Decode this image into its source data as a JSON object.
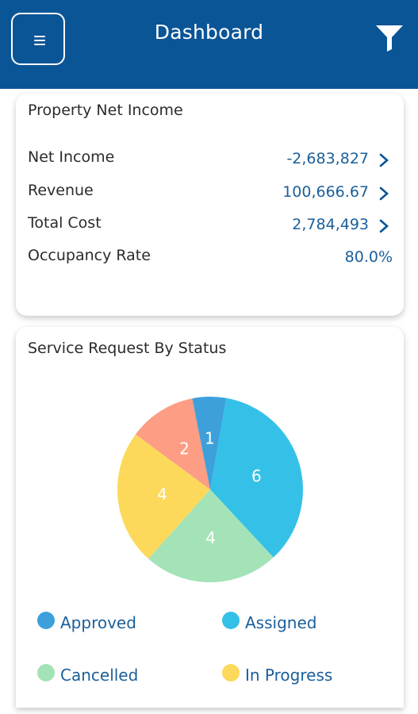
{
  "header": {
    "title": "Dashboard",
    "menu_icon": "hamburger-menu-icon",
    "filter_icon": "filter-funnel-icon",
    "background": "#0a5596"
  },
  "net_income_card": {
    "title": "Property Net Income",
    "rows": [
      {
        "label": "Net Income",
        "value": "-2,683,827",
        "has_arrow": true
      },
      {
        "label": "Revenue",
        "value": "100,666.67",
        "has_arrow": true
      },
      {
        "label": "Total Cost",
        "value": "2,784,493",
        "has_arrow": true
      },
      {
        "label": "Occupancy Rate",
        "value": "80.0%",
        "has_arrow": false
      }
    ],
    "value_color": "#1b5f9a"
  },
  "service_card": {
    "title": "Service Request By Status"
  },
  "chart_data": {
    "type": "pie",
    "title": "Service Request By Status",
    "categories": [
      "Assigned",
      "Cancelled",
      "In Progress",
      "Unlabeled",
      "Approved"
    ],
    "values": [
      6,
      4,
      4,
      2,
      1
    ],
    "colors": [
      "#35c1e7",
      "#a3e3b7",
      "#fcd95a",
      "#fc9d84",
      "#3da0db"
    ],
    "data_labels": [
      "6",
      "4",
      "4",
      "2",
      "1"
    ],
    "legend": [
      {
        "label": "Approved",
        "color": "#3da0db"
      },
      {
        "label": "Assigned",
        "color": "#35c1e7"
      },
      {
        "label": "Cancelled",
        "color": "#a3e3b7"
      },
      {
        "label": "In Progress",
        "color": "#fcd95a"
      }
    ],
    "legend_placement": "bottom"
  }
}
